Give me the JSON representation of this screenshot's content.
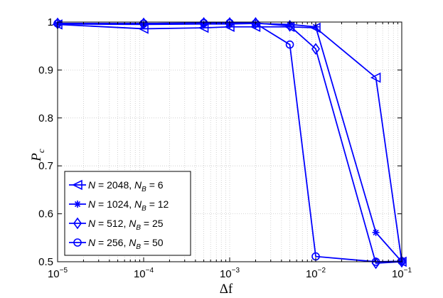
{
  "chart_data": {
    "type": "line",
    "xscale": "log",
    "xlim": [
      1e-05,
      0.1
    ],
    "ylim": [
      0.5,
      1.0
    ],
    "grid": true,
    "legend_position": "bottom-left",
    "xlabel": "Δf",
    "ylabel": "P_c",
    "x_ticks": [
      {
        "base": "10",
        "exp": "−5",
        "value": 1e-05
      },
      {
        "base": "10",
        "exp": "−4",
        "value": 0.0001
      },
      {
        "base": "10",
        "exp": "−3",
        "value": 0.001
      },
      {
        "base": "10",
        "exp": "−2",
        "value": 0.01
      },
      {
        "base": "10",
        "exp": "−1",
        "value": 0.1
      }
    ],
    "y_ticks": [
      {
        "label": "0.5",
        "value": 0.5
      },
      {
        "label": "0.6",
        "value": 0.6
      },
      {
        "label": "0.7",
        "value": 0.7
      },
      {
        "label": "0.8",
        "value": 0.8
      },
      {
        "label": "0.9",
        "value": 0.9
      },
      {
        "label": "1",
        "value": 1.0
      }
    ],
    "series": [
      {
        "name": "N = 2048, N_B = 6",
        "legend": {
          "N": "2048",
          "NB": "6"
        },
        "marker": "triangle-left",
        "color": "#0000ff",
        "x": [
          1e-05,
          0.0001,
          0.0005,
          0.001,
          0.002,
          0.005,
          0.01,
          0.05,
          0.1
        ],
        "y": [
          0.995,
          0.986,
          0.988,
          0.99,
          0.99,
          0.99,
          0.988,
          0.884,
          0.5
        ]
      },
      {
        "name": "N = 1024, N_B = 12",
        "legend": {
          "N": "1024",
          "NB": "12"
        },
        "marker": "asterisk",
        "color": "#0000ff",
        "x": [
          1e-05,
          0.0001,
          0.0005,
          0.001,
          0.002,
          0.005,
          0.01,
          0.05,
          0.1
        ],
        "y": [
          0.996,
          0.995,
          0.996,
          0.996,
          0.997,
          0.995,
          0.99,
          0.561,
          0.5
        ]
      },
      {
        "name": "N = 512, N_B = 25",
        "legend": {
          "N": "512",
          "NB": "25"
        },
        "marker": "diamond",
        "color": "#0000ff",
        "x": [
          1e-05,
          0.0001,
          0.0005,
          0.001,
          0.002,
          0.005,
          0.01,
          0.05,
          0.1
        ],
        "y": [
          0.997,
          0.997,
          0.998,
          0.998,
          0.998,
          0.992,
          0.944,
          0.497,
          0.5
        ]
      },
      {
        "name": "N = 256, N_B = 50",
        "legend": {
          "N": "256",
          "NB": "50"
        },
        "marker": "circle",
        "color": "#0000ff",
        "x": [
          1e-05,
          0.0001,
          0.0005,
          0.001,
          0.002,
          0.005,
          0.01,
          0.05,
          0.1
        ],
        "y": [
          0.997,
          0.997,
          0.998,
          0.998,
          0.997,
          0.953,
          0.511,
          0.5,
          0.501
        ]
      }
    ]
  }
}
